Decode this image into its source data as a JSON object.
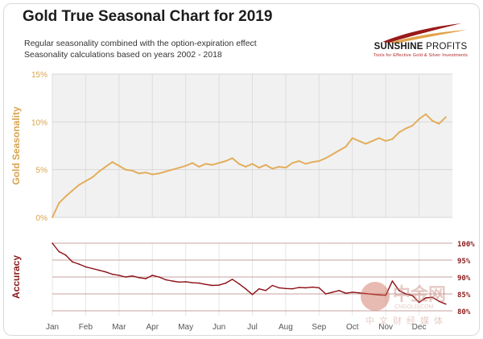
{
  "header": {
    "title": "Gold True Seasonal Chart for 2019",
    "subtitle_1": "Regular seasonality combined with the option-expiration effect",
    "subtitle_2": "Seasonality calculations based on years 2002 - 2018"
  },
  "logo": {
    "name_bold": "SUNSHINE",
    "name_light": " PROFITS",
    "tagline": "Tools for Effective Gold & Silver Investments"
  },
  "watermark": {
    "big": "中金网",
    "url": "CNGOLD.COM",
    "small": "中文财经媒体"
  },
  "colors": {
    "seasonal_line": "#e3ae5c",
    "accuracy_line": "#8b0f14",
    "axis_label_top": "#d9a44e",
    "axis_label_bottom": "#8b1a1a",
    "grid_red": "#c9a0a0"
  },
  "chart_data": [
    {
      "type": "line",
      "ylabel": "Gold Seasonality",
      "y_ticks": [
        "15%",
        "10%",
        "5%",
        "0%"
      ],
      "y_tick_values": [
        15,
        10,
        5,
        0
      ],
      "ylim": [
        0,
        15
      ],
      "x_ticks": [
        "Jan",
        "Feb",
        "Mar",
        "Apr",
        "May",
        "Jun",
        "Jul",
        "Aug",
        "Sep",
        "Oct",
        "Nov",
        "Dec"
      ],
      "grid": true,
      "series": [
        {
          "x": [
            0,
            0.2,
            0.4,
            0.6,
            0.8,
            1.0,
            1.2,
            1.4,
            1.6,
            1.8,
            2.0,
            2.2,
            2.4,
            2.6,
            2.8,
            3.0,
            3.2,
            3.4,
            3.6,
            3.8,
            4.0,
            4.2,
            4.4,
            4.6,
            4.8,
            5.0,
            5.2,
            5.4,
            5.6,
            5.8,
            6.0,
            6.2,
            6.4,
            6.6,
            6.8,
            7.0,
            7.2,
            7.4,
            7.6,
            7.8,
            8.0,
            8.2,
            8.4,
            8.6,
            8.8,
            9.0,
            9.2,
            9.4,
            9.6,
            9.8,
            10.0,
            10.2,
            10.4,
            10.6,
            10.8,
            11.0,
            11.2,
            11.4,
            11.6,
            11.8
          ],
          "values": [
            0.0,
            1.5,
            2.2,
            2.8,
            3.4,
            3.8,
            4.2,
            4.8,
            5.3,
            5.8,
            5.4,
            5.0,
            4.9,
            4.6,
            4.7,
            4.5,
            4.6,
            4.8,
            5.0,
            5.2,
            5.4,
            5.7,
            5.3,
            5.6,
            5.5,
            5.7,
            5.9,
            6.2,
            5.6,
            5.3,
            5.6,
            5.2,
            5.5,
            5.1,
            5.3,
            5.2,
            5.7,
            5.9,
            5.6,
            5.8,
            5.9,
            6.2,
            6.6,
            7.0,
            7.4,
            8.3,
            8.0,
            7.7,
            8.0,
            8.3,
            8.0,
            8.2,
            8.9,
            9.3,
            9.6,
            10.3,
            10.8,
            10.1,
            9.8,
            10.5
          ]
        }
      ]
    },
    {
      "type": "line",
      "ylabel": "Accuracy",
      "y_ticks": [
        "100%",
        "95%",
        "90%",
        "85%",
        "80%"
      ],
      "y_tick_values": [
        100,
        95,
        90,
        85,
        80
      ],
      "ylim": [
        80,
        100
      ],
      "x_ticks": [
        "Jan",
        "Feb",
        "Mar",
        "Apr",
        "May",
        "Jun",
        "Jul",
        "Aug",
        "Sep",
        "Oct",
        "Nov",
        "Dec"
      ],
      "grid": true,
      "series": [
        {
          "x": [
            0,
            0.2,
            0.4,
            0.6,
            0.8,
            1.0,
            1.2,
            1.4,
            1.6,
            1.8,
            2.0,
            2.2,
            2.4,
            2.6,
            2.8,
            3.0,
            3.2,
            3.4,
            3.6,
            3.8,
            4.0,
            4.2,
            4.4,
            4.6,
            4.8,
            5.0,
            5.2,
            5.4,
            5.6,
            5.8,
            6.0,
            6.2,
            6.4,
            6.6,
            6.8,
            7.0,
            7.2,
            7.4,
            7.6,
            7.8,
            8.0,
            8.2,
            8.4,
            8.6,
            8.8,
            9.0,
            9.2,
            9.4,
            9.6,
            9.8,
            10.0,
            10.2,
            10.4,
            10.6,
            10.8,
            11.0,
            11.2,
            11.4,
            11.6,
            11.8
          ],
          "values": [
            100,
            97.5,
            96.5,
            94.5,
            93.8,
            93.0,
            92.5,
            92.0,
            91.5,
            90.8,
            90.5,
            90.0,
            90.3,
            89.8,
            89.5,
            90.5,
            90.0,
            89.2,
            88.8,
            88.5,
            88.6,
            88.3,
            88.2,
            87.8,
            87.5,
            87.6,
            88.2,
            89.3,
            88.0,
            86.5,
            84.8,
            86.5,
            86.0,
            87.5,
            86.8,
            86.6,
            86.5,
            86.9,
            86.8,
            87.0,
            86.8,
            85.0,
            85.5,
            86.0,
            85.2,
            85.5,
            85.3,
            85.1,
            84.9,
            84.7,
            84.6,
            88.8,
            86.0,
            85.0,
            84.5,
            82.5,
            83.8,
            84.0,
            82.8,
            82.0
          ]
        }
      ]
    }
  ]
}
